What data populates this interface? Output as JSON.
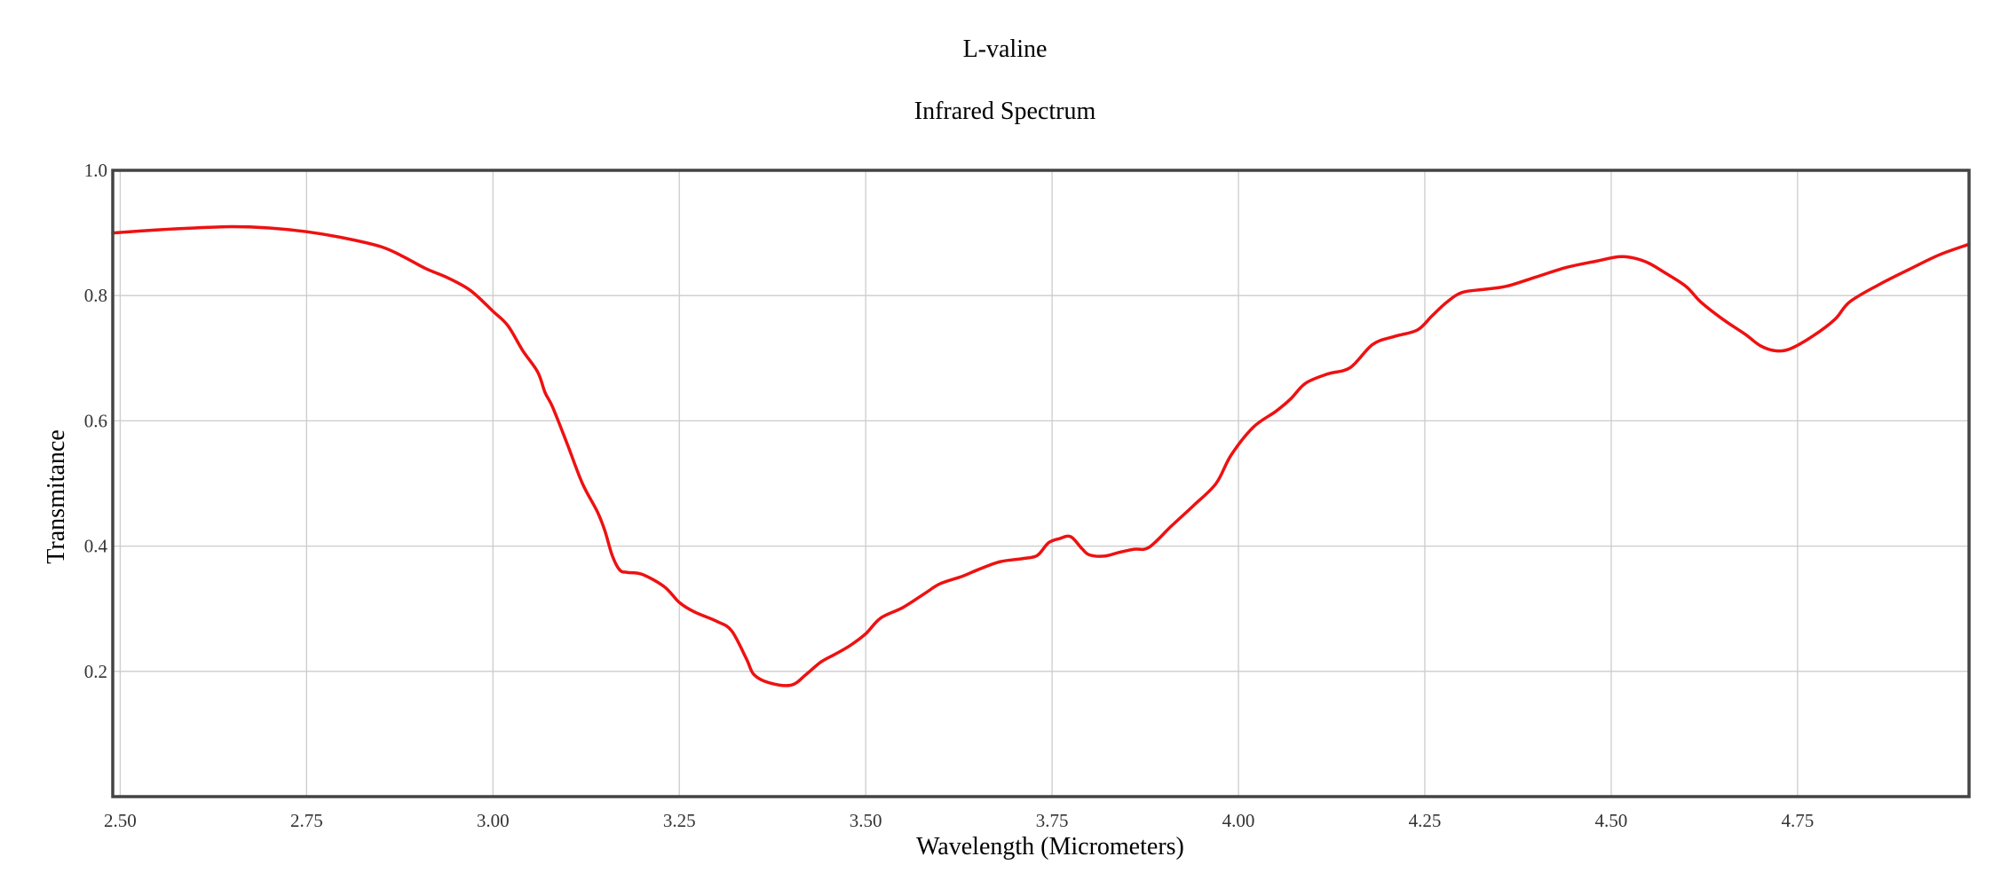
{
  "chart_data": {
    "type": "line",
    "title": "L-valine",
    "subtitle": "Infrared Spectrum",
    "xlabel": "Wavelength (Micrometers)",
    "ylabel": "Transmitance",
    "xlim": [
      2.49,
      4.98
    ],
    "ylim": [
      0.0,
      1.0
    ],
    "x_ticks": [
      2.5,
      2.75,
      3.0,
      3.25,
      3.5,
      3.75,
      4.0,
      4.25,
      4.5,
      4.75
    ],
    "x_tick_labels": [
      "2.50",
      "2.75",
      "3.00",
      "3.25",
      "3.50",
      "3.75",
      "4.00",
      "4.25",
      "4.50",
      "4.75"
    ],
    "y_ticks": [
      0.2,
      0.4,
      0.6,
      0.8,
      1.0
    ],
    "y_tick_labels": [
      "0.2",
      "0.4",
      "0.6",
      "0.8",
      "1.0"
    ],
    "grid": true,
    "series": [
      {
        "color": "#ee1111",
        "x": [
          2.49,
          2.55,
          2.6,
          2.65,
          2.7,
          2.75,
          2.8,
          2.85,
          2.88,
          2.91,
          2.94,
          2.97,
          3.0,
          3.02,
          3.04,
          3.06,
          3.07,
          3.08,
          3.1,
          3.12,
          3.14,
          3.15,
          3.16,
          3.17,
          3.18,
          3.2,
          3.23,
          3.25,
          3.27,
          3.3,
          3.32,
          3.34,
          3.35,
          3.37,
          3.4,
          3.42,
          3.44,
          3.46,
          3.48,
          3.5,
          3.52,
          3.55,
          3.58,
          3.6,
          3.63,
          3.65,
          3.68,
          3.71,
          3.73,
          3.745,
          3.76,
          3.775,
          3.79,
          3.8,
          3.82,
          3.84,
          3.86,
          3.88,
          3.91,
          3.94,
          3.97,
          3.99,
          4.02,
          4.05,
          4.07,
          4.09,
          4.12,
          4.15,
          4.18,
          4.21,
          4.24,
          4.26,
          4.28,
          4.3,
          4.33,
          4.36,
          4.4,
          4.44,
          4.48,
          4.51,
          4.53,
          4.55,
          4.57,
          4.6,
          4.62,
          4.65,
          4.68,
          4.7,
          4.72,
          4.74,
          4.77,
          4.8,
          4.82,
          4.86,
          4.9,
          4.94,
          4.98
        ],
        "y": [
          0.9,
          0.905,
          0.908,
          0.91,
          0.908,
          0.902,
          0.892,
          0.878,
          0.862,
          0.843,
          0.828,
          0.808,
          0.775,
          0.752,
          0.712,
          0.678,
          0.645,
          0.622,
          0.562,
          0.5,
          0.455,
          0.425,
          0.385,
          0.362,
          0.358,
          0.355,
          0.335,
          0.31,
          0.295,
          0.28,
          0.265,
          0.22,
          0.195,
          0.182,
          0.178,
          0.195,
          0.215,
          0.228,
          0.242,
          0.26,
          0.285,
          0.302,
          0.325,
          0.34,
          0.352,
          0.362,
          0.375,
          0.38,
          0.385,
          0.405,
          0.412,
          0.415,
          0.396,
          0.386,
          0.384,
          0.39,
          0.395,
          0.398,
          0.432,
          0.465,
          0.5,
          0.545,
          0.59,
          0.615,
          0.635,
          0.66,
          0.675,
          0.685,
          0.722,
          0.735,
          0.745,
          0.768,
          0.79,
          0.805,
          0.81,
          0.815,
          0.83,
          0.845,
          0.855,
          0.862,
          0.86,
          0.852,
          0.838,
          0.815,
          0.79,
          0.762,
          0.738,
          0.72,
          0.712,
          0.715,
          0.735,
          0.762,
          0.79,
          0.818,
          0.842,
          0.865,
          0.882
        ]
      }
    ]
  }
}
